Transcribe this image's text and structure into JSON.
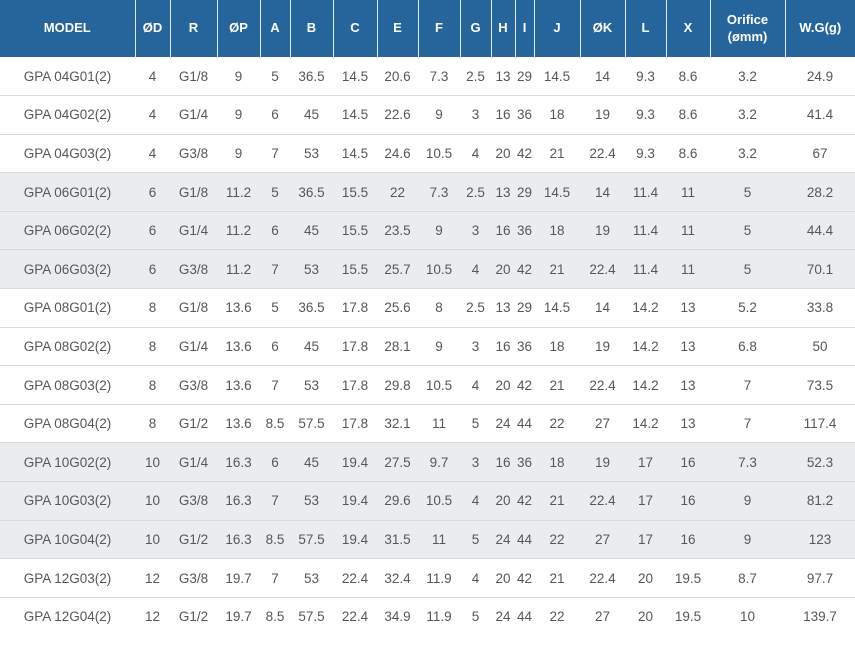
{
  "table": {
    "columns": [
      "MODEL",
      "ØD",
      "R",
      "ØP",
      "A",
      "B",
      "C",
      "E",
      "F",
      "G",
      "H",
      "I",
      "J",
      "ØK",
      "L",
      "X",
      "Orifice (ømm)",
      "W.G(g)"
    ],
    "rows": [
      {
        "model": "GPA 04G01(2)",
        "values": [
          "4",
          "G1/8",
          "9",
          "5",
          "36.5",
          "14.5",
          "20.6",
          "7.3",
          "2.5",
          "13",
          "29",
          "14.5",
          "14",
          "9.3",
          "8.6",
          "3.2",
          "24.9"
        ]
      },
      {
        "model": "GPA 04G02(2)",
        "values": [
          "4",
          "G1/4",
          "9",
          "6",
          "45",
          "14.5",
          "22.6",
          "9",
          "3",
          "16",
          "36",
          "18",
          "19",
          "9.3",
          "8.6",
          "3.2",
          "41.4"
        ]
      },
      {
        "model": "GPA 04G03(2)",
        "values": [
          "4",
          "G3/8",
          "9",
          "7",
          "53",
          "14.5",
          "24.6",
          "10.5",
          "4",
          "20",
          "42",
          "21",
          "22.4",
          "9.3",
          "8.6",
          "3.2",
          "67"
        ]
      },
      {
        "model": "GPA 06G01(2)",
        "values": [
          "6",
          "G1/8",
          "11.2",
          "5",
          "36.5",
          "15.5",
          "22",
          "7.3",
          "2.5",
          "13",
          "29",
          "14.5",
          "14",
          "11.4",
          "11",
          "5",
          "28.2"
        ]
      },
      {
        "model": "GPA 06G02(2)",
        "values": [
          "6",
          "G1/4",
          "11.2",
          "6",
          "45",
          "15.5",
          "23.5",
          "9",
          "3",
          "16",
          "36",
          "18",
          "19",
          "11.4",
          "11",
          "5",
          "44.4"
        ]
      },
      {
        "model": "GPA 06G03(2)",
        "values": [
          "6",
          "G3/8",
          "11.2",
          "7",
          "53",
          "15.5",
          "25.7",
          "10.5",
          "4",
          "20",
          "42",
          "21",
          "22.4",
          "11.4",
          "11",
          "5",
          "70.1"
        ]
      },
      {
        "model": "GPA 08G01(2)",
        "values": [
          "8",
          "G1/8",
          "13.6",
          "5",
          "36.5",
          "17.8",
          "25.6",
          "8",
          "2.5",
          "13",
          "29",
          "14.5",
          "14",
          "14.2",
          "13",
          "5.2",
          "33.8"
        ]
      },
      {
        "model": "GPA 08G02(2)",
        "values": [
          "8",
          "G1/4",
          "13.6",
          "6",
          "45",
          "17.8",
          "28.1",
          "9",
          "3",
          "16",
          "36",
          "18",
          "19",
          "14.2",
          "13",
          "6.8",
          "50"
        ]
      },
      {
        "model": "GPA 08G03(2)",
        "values": [
          "8",
          "G3/8",
          "13.6",
          "7",
          "53",
          "17.8",
          "29.8",
          "10.5",
          "4",
          "20",
          "42",
          "21",
          "22.4",
          "14.2",
          "13",
          "7",
          "73.5"
        ]
      },
      {
        "model": "GPA 08G04(2)",
        "values": [
          "8",
          "G1/2",
          "13.6",
          "8.5",
          "57.5",
          "17.8",
          "32.1",
          "11",
          "5",
          "24",
          "44",
          "22",
          "27",
          "14.2",
          "13",
          "7",
          "117.4"
        ]
      },
      {
        "model": "GPA 10G02(2)",
        "values": [
          "10",
          "G1/4",
          "16.3",
          "6",
          "45",
          "19.4",
          "27.5",
          "9.7",
          "3",
          "16",
          "36",
          "18",
          "19",
          "17",
          "16",
          "7.3",
          "52.3"
        ]
      },
      {
        "model": "GPA 10G03(2)",
        "values": [
          "10",
          "G3/8",
          "16.3",
          "7",
          "53",
          "19.4",
          "29.6",
          "10.5",
          "4",
          "20",
          "42",
          "21",
          "22.4",
          "17",
          "16",
          "9",
          "81.2"
        ]
      },
      {
        "model": "GPA 10G04(2)",
        "values": [
          "10",
          "G1/2",
          "16.3",
          "8.5",
          "57.5",
          "19.4",
          "31.5",
          "11",
          "5",
          "24",
          "44",
          "22",
          "27",
          "17",
          "16",
          "9",
          "123"
        ]
      },
      {
        "model": "GPA 12G03(2)",
        "values": [
          "12",
          "G3/8",
          "19.7",
          "7",
          "53",
          "22.4",
          "32.4",
          "11.9",
          "4",
          "20",
          "42",
          "21",
          "22.4",
          "20",
          "19.5",
          "8.7",
          "97.7"
        ]
      },
      {
        "model": "GPA 12G04(2)",
        "values": [
          "12",
          "G1/2",
          "19.7",
          "8.5",
          "57.5",
          "22.4",
          "34.9",
          "11.9",
          "5",
          "24",
          "44",
          "22",
          "27",
          "20",
          "19.5",
          "10",
          "139.7"
        ]
      }
    ],
    "colors": {
      "header_bg": "#26659c",
      "header_text": "#ffffff",
      "body_text": "#56575b",
      "row_bg": "#ffffff",
      "row_alt_bg": "#ebecee",
      "row_border": "#d8d9da"
    }
  }
}
